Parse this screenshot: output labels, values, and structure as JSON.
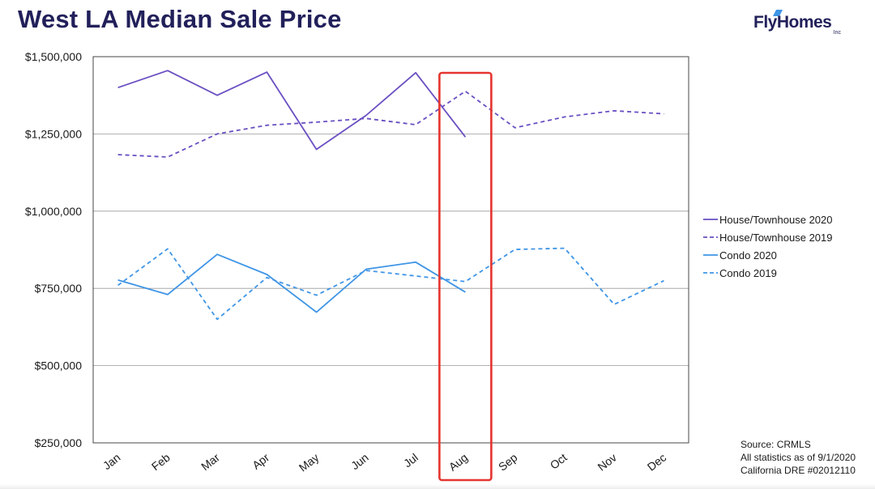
{
  "header": {
    "title": "West LA Median Sale Price"
  },
  "logo": {
    "name": "FlyHomes",
    "sub": "Inc"
  },
  "source": {
    "line1": "Source: CRMLS",
    "line2": "All statistics as of 9/1/2020",
    "line3": "California DRE #02012110"
  },
  "colors": {
    "house": "#6a4fc2",
    "condo": "#3f95e6",
    "highlight": "#e5352f",
    "grid": "#9a9a9a",
    "axis": "#333333"
  },
  "chart_data": {
    "type": "line",
    "title": "West LA Median Sale Price",
    "xlabel": "",
    "ylabel": "",
    "categories": [
      "Jan",
      "Feb",
      "Mar",
      "Apr",
      "May",
      "Jun",
      "Jul",
      "Aug",
      "Sep",
      "Oct",
      "Nov",
      "Dec"
    ],
    "ylim": [
      250000,
      1500000
    ],
    "yticks": [
      250000,
      500000,
      750000,
      1000000,
      1250000,
      1500000
    ],
    "ytick_labels": [
      "$250,000",
      "$500,000",
      "$750,000",
      "$1,000,000",
      "$1,250,000",
      "$1,500,000"
    ],
    "grid": true,
    "legend_position": "right",
    "highlighted_category": "Aug",
    "series": [
      {
        "name": "House/Townhouse 2020",
        "color": "#6a4fc2",
        "style": "solid",
        "values": [
          1400000,
          1455000,
          1375000,
          1450000,
          1200000,
          1310000,
          1448000,
          1240000,
          null,
          null,
          null,
          null
        ]
      },
      {
        "name": "House/Townhouse 2019",
        "color": "#6a4fc2",
        "style": "dashed",
        "values": [
          1183000,
          1175000,
          1250000,
          1278000,
          1288000,
          1300000,
          1280000,
          1388000,
          1270000,
          1305000,
          1325000,
          1315000
        ]
      },
      {
        "name": "Condo 2020",
        "color": "#3f95e6",
        "style": "solid",
        "values": [
          777000,
          730000,
          860000,
          795000,
          673000,
          812000,
          835000,
          738000,
          null,
          null,
          null,
          null
        ]
      },
      {
        "name": "Condo 2019",
        "color": "#3f95e6",
        "style": "dashed",
        "values": [
          760000,
          878000,
          650000,
          785000,
          728000,
          808000,
          790000,
          772000,
          876000,
          880000,
          698000,
          775000
        ]
      }
    ]
  }
}
